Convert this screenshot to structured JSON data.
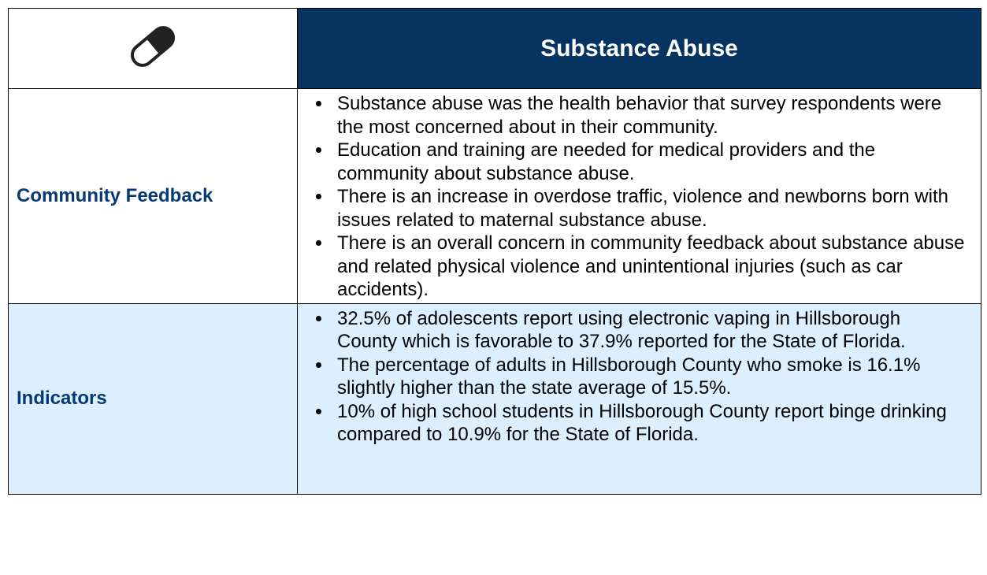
{
  "header": {
    "title": "Substance Abuse"
  },
  "rows": [
    {
      "label": "Community Feedback",
      "bullets": [
        "Substance abuse was the health behavior that survey respondents were the most concerned about in their community.",
        "Education and training are needed for medical providers and the community about substance abuse.",
        "There is an increase in overdose traffic, violence and newborns born with issues related to maternal substance abuse.",
        "There is an overall concern in community feedback about substance abuse and related physical violence and unintentional injuries (such as car accidents)."
      ]
    },
    {
      "label": "Indicators",
      "bullets": [
        "32.5% of adolescents report using electronic vaping in Hillsborough County which is favorable to 37.9% reported for the State of Florida.",
        "The percentage of adults in Hillsborough County who smoke is 16.1% slightly higher than the state average of 15.5%.",
        "10% of high school students in Hillsborough County report binge drinking compared to 10.9% for the State of Florida."
      ]
    }
  ]
}
